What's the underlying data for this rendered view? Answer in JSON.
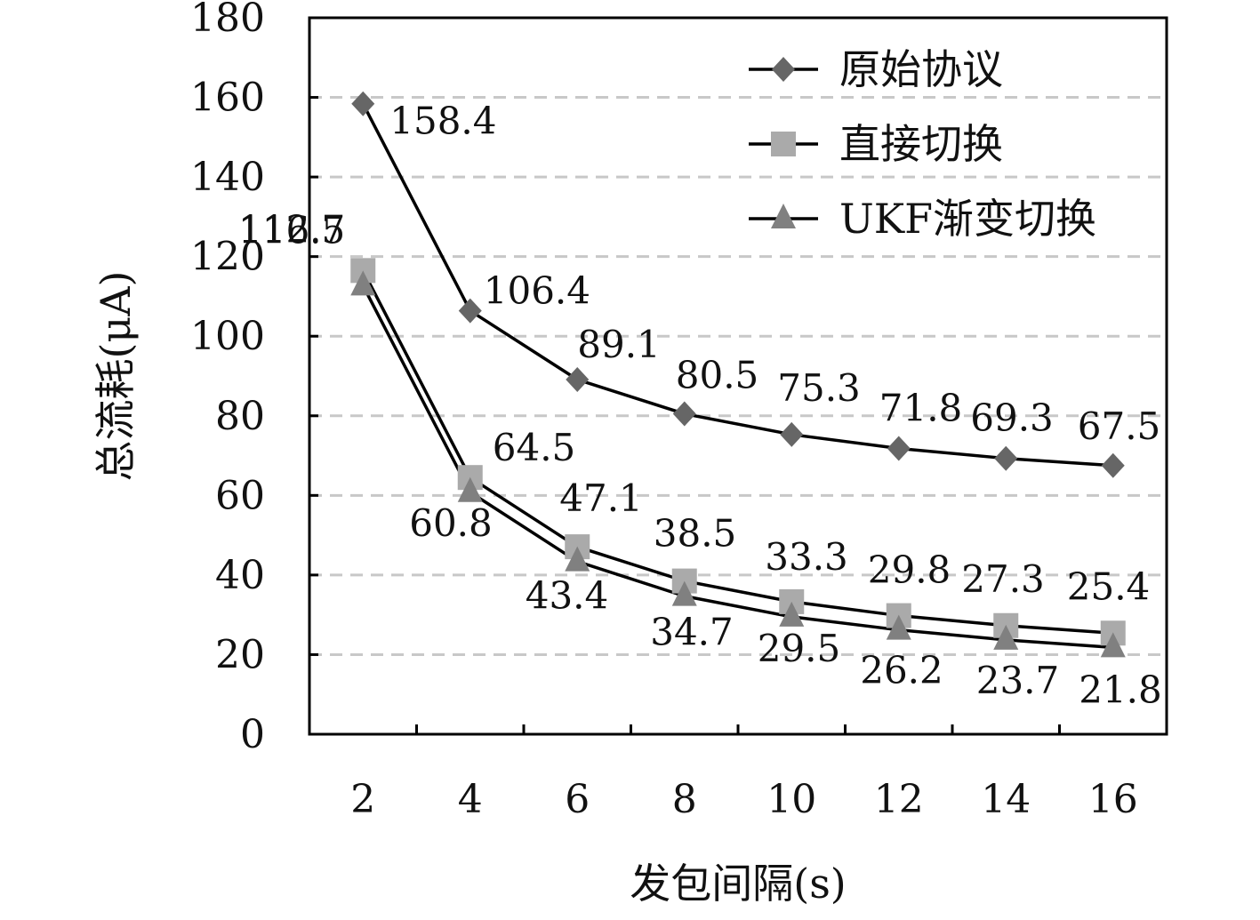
{
  "chart_data": {
    "type": "line",
    "title": "",
    "xlabel": "发包间隔(s)",
    "ylabel": "总流耗(μA)",
    "x": [
      2,
      4,
      6,
      8,
      10,
      12,
      14,
      16
    ],
    "ylim": [
      0,
      180
    ],
    "yticks": [
      0,
      20,
      40,
      60,
      80,
      100,
      120,
      140,
      160,
      180
    ],
    "grid": "horizontal-dashed",
    "legend_position": "top-right",
    "series": [
      {
        "name": "原始协议",
        "marker": "diamond",
        "color": "#666666",
        "values": [
          158.4,
          106.4,
          89.1,
          80.5,
          75.3,
          71.8,
          69.3,
          67.5
        ],
        "labels": [
          "158.4",
          "106.4",
          "89.1",
          "80.5",
          "75.3",
          "71.8",
          "69.3",
          "67.5"
        ]
      },
      {
        "name": "直接切换",
        "marker": "square",
        "color": "#aaaaaa",
        "values": [
          116.5,
          64.5,
          47.1,
          38.5,
          33.3,
          29.8,
          27.3,
          25.4
        ],
        "labels": [
          "116.5",
          "64.5",
          "47.1",
          "38.5",
          "33.3",
          "29.8",
          "27.3",
          "25.4"
        ]
      },
      {
        "name": "UKF渐变切换",
        "marker": "triangle",
        "color": "#808080",
        "values": [
          112.7,
          60.8,
          43.4,
          34.7,
          29.5,
          26.2,
          23.7,
          21.8
        ],
        "labels": [
          "112.7",
          "60.8",
          "43.4",
          "34.7",
          "29.5",
          "26.2",
          "23.7",
          "21.8"
        ]
      }
    ]
  }
}
